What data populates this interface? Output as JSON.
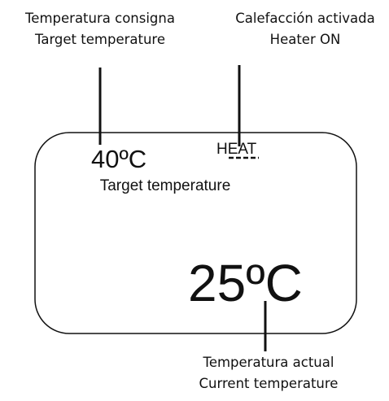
{
  "callouts": [
    {
      "lines": [
        "Temperatura consigna",
        "Target temperature"
      ]
    },
    {
      "lines": [
        "Calefacción activada",
        "Heater ON"
      ]
    },
    {
      "lines": [
        "Temperatura actual",
        "Current temperature"
      ]
    }
  ],
  "display": {
    "target_value": "40ºC",
    "target_label": "Target temperature",
    "status": "HEAT",
    "current_value": "25ºC"
  }
}
